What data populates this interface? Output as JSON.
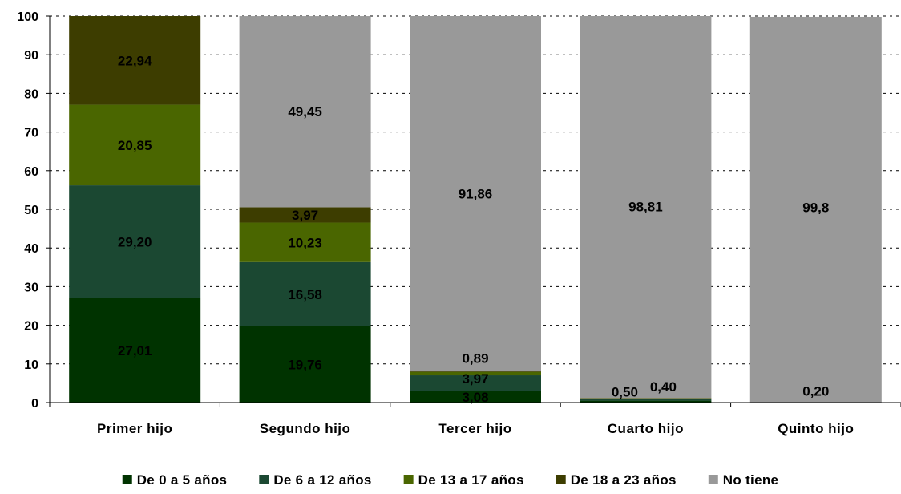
{
  "chart_data": {
    "type": "bar",
    "stacked": true,
    "categories": [
      "Primer hijo",
      "Segundo hijo",
      "Tercer hijo",
      "Cuarto hijo",
      "Quinto hijo"
    ],
    "series": [
      {
        "name": "De 0 a 5 años",
        "color": "#003300",
        "values": [
          27.01,
          19.76,
          3.08,
          0.5,
          0.0
        ]
      },
      {
        "name": "De 6 a 12 años",
        "color": "#1B4832",
        "values": [
          29.2,
          16.58,
          3.97,
          0.4,
          0.0
        ]
      },
      {
        "name": "De 13 a 17 años",
        "color": "#4A6600",
        "values": [
          20.85,
          10.23,
          0.89,
          0.2,
          0.0
        ]
      },
      {
        "name": "De 18 a 23 años",
        "color": "#3D3D00",
        "values": [
          22.94,
          3.97,
          0.3,
          0.1,
          0.0
        ]
      },
      {
        "name": "No tiene",
        "color": "#999999",
        "values": [
          0.0,
          49.45,
          91.86,
          98.81,
          99.8
        ]
      }
    ],
    "data_labels": [
      {
        "category": 0,
        "text": "27,01",
        "y": 13.5,
        "dx": 0
      },
      {
        "category": 0,
        "text": "29,20",
        "y": 41.6,
        "dx": 0
      },
      {
        "category": 0,
        "text": "20,85",
        "y": 66.6,
        "dx": 0
      },
      {
        "category": 0,
        "text": "22,94",
        "y": 88.5,
        "dx": 0
      },
      {
        "category": 1,
        "text": "19,76",
        "y": 9.9,
        "dx": 0
      },
      {
        "category": 1,
        "text": "16,58",
        "y": 28.0,
        "dx": 0
      },
      {
        "category": 1,
        "text": "10,23",
        "y": 41.4,
        "dx": 0
      },
      {
        "category": 1,
        "text": "3,97",
        "y": 48.5,
        "dx": 0
      },
      {
        "category": 1,
        "text": "49,45",
        "y": 75.3,
        "dx": 0
      },
      {
        "category": 2,
        "text": "3,08",
        "y": 1.5,
        "dx": 0
      },
      {
        "category": 2,
        "text": "3,97",
        "y": 6.2,
        "dx": 0
      },
      {
        "category": 2,
        "text": "0,89",
        "y": 11.5,
        "dx": 0
      },
      {
        "category": 2,
        "text": "91,86",
        "y": 54.0,
        "dx": 0
      },
      {
        "category": 3,
        "text": "0,50",
        "y": 2.8,
        "dx": -26
      },
      {
        "category": 3,
        "text": "0,40",
        "y": 4.2,
        "dx": 22
      },
      {
        "category": 3,
        "text": "98,81",
        "y": 50.7,
        "dx": 0
      },
      {
        "category": 4,
        "text": "0,20",
        "y": 3.0,
        "dx": 0
      },
      {
        "category": 4,
        "text": "99,8",
        "y": 50.5,
        "dx": 0
      }
    ],
    "ylim": [
      0,
      100
    ],
    "yticks": [
      0,
      10,
      20,
      30,
      40,
      50,
      60,
      70,
      80,
      90,
      100
    ],
    "grid": "horizontal dashed",
    "legend_position": "bottom"
  }
}
